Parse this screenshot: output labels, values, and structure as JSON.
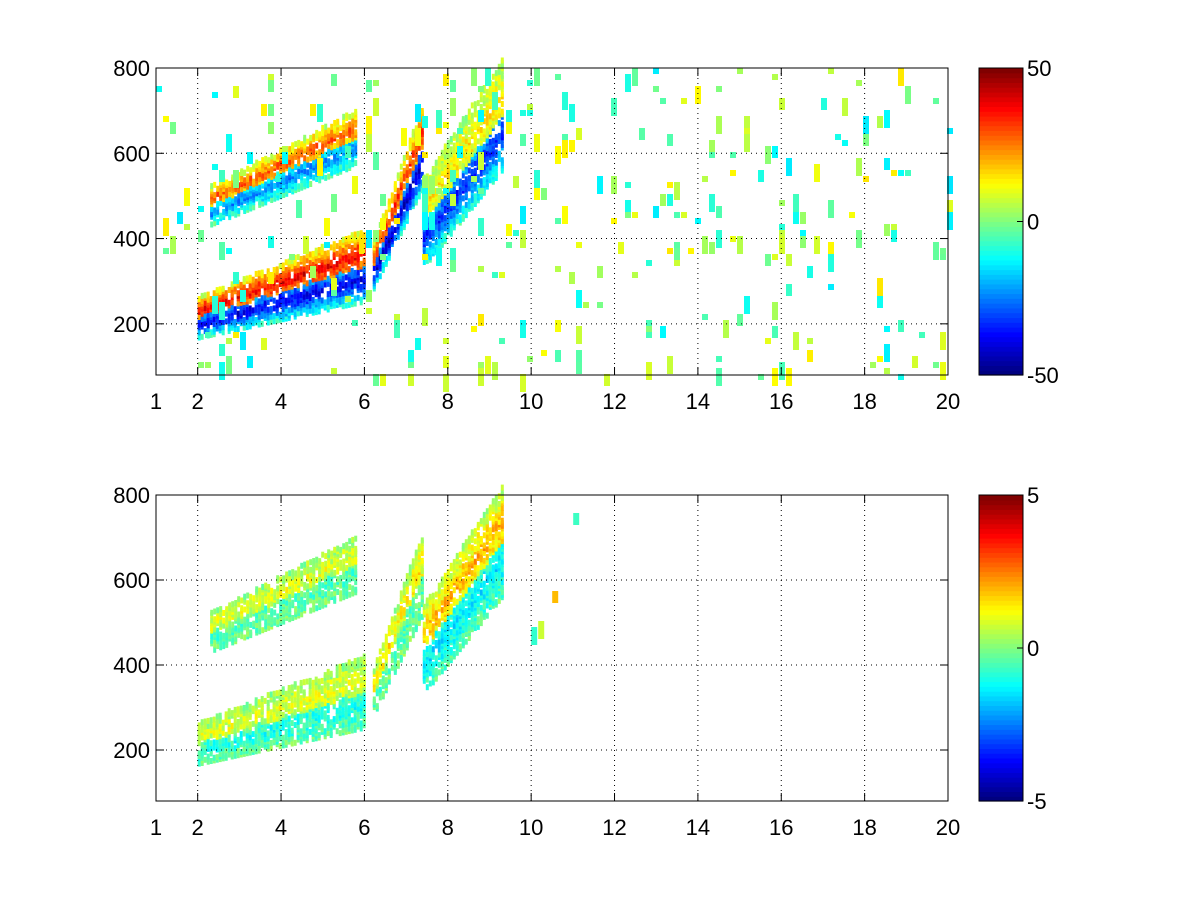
{
  "figure": {
    "background": "#ffffff",
    "grid_color": "#000000",
    "colormap": "jet"
  },
  "chart_data": [
    {
      "type": "heatmap",
      "title": "",
      "xlabel": "",
      "ylabel": "",
      "xlim": [
        1,
        20
      ],
      "ylim": [
        80,
        800
      ],
      "xticks": [
        1,
        2,
        4,
        6,
        8,
        10,
        12,
        14,
        16,
        18,
        20
      ],
      "yticks": [
        200,
        400,
        600,
        800
      ],
      "grid": true,
      "colorbar": {
        "limits": [
          -50,
          50
        ],
        "ticks": [
          -50,
          0,
          50
        ]
      },
      "description_of_values": "sparse colored cells; values range -50 to 50",
      "features": [
        {
          "name": "lower-ridge",
          "x": [
            2.0,
            6.0
          ],
          "y_start": [
            205,
            240
          ],
          "y_end": [
            290,
            400
          ],
          "value_top": 40,
          "value_bottom": -40
        },
        {
          "name": "upper-ridge",
          "x": [
            2.3,
            5.8
          ],
          "y_start": [
            470,
            500
          ],
          "y_end": [
            610,
            680
          ],
          "value_top": 30,
          "value_bottom": -25
        },
        {
          "name": "mid-ridge",
          "x": [
            6.2,
            7.4
          ],
          "y_start": [
            320,
            370
          ],
          "y_end": [
            560,
            700
          ],
          "value_top": 35,
          "value_bottom": -45
        },
        {
          "name": "right-ridge",
          "x": [
            7.4,
            9.3
          ],
          "y_start": [
            370,
            520
          ],
          "y_end": [
            600,
            800
          ],
          "value_top": 15,
          "value_bottom": -35
        }
      ],
      "background_noise": {
        "x": [
          1,
          20
        ],
        "y": [
          80,
          800
        ],
        "value_range": [
          -15,
          15
        ],
        "density": "sparse"
      }
    },
    {
      "type": "heatmap",
      "title": "",
      "xlabel": "",
      "ylabel": "",
      "xlim": [
        1,
        20
      ],
      "ylim": [
        80,
        800
      ],
      "xticks": [
        1,
        2,
        4,
        6,
        8,
        10,
        12,
        14,
        16,
        18,
        20
      ],
      "yticks": [
        200,
        400,
        600,
        800
      ],
      "grid": true,
      "colorbar": {
        "limits": [
          -5,
          5
        ],
        "ticks": [
          -5,
          0,
          5
        ]
      },
      "description_of_values": "sparse colored cells mostly near 0; values range -5 to 5",
      "features": [
        {
          "name": "lower-ridge",
          "x": [
            2.0,
            6.0
          ],
          "y_start": [
            205,
            240
          ],
          "y_end": [
            290,
            400
          ],
          "value_top": 1,
          "value_bottom": -1
        },
        {
          "name": "upper-ridge",
          "x": [
            2.3,
            5.8
          ],
          "y_start": [
            470,
            500
          ],
          "y_end": [
            610,
            680
          ],
          "value_top": 1,
          "value_bottom": -0.5
        },
        {
          "name": "mid-ridge",
          "x": [
            6.2,
            7.4
          ],
          "y_start": [
            320,
            370
          ],
          "y_end": [
            560,
            700
          ],
          "value_top": 1.5,
          "value_bottom": -0.5
        },
        {
          "name": "right-ridge",
          "x": [
            7.4,
            9.3
          ],
          "y_start": [
            370,
            520
          ],
          "y_end": [
            600,
            800
          ],
          "value_top": 2,
          "value_bottom": -1.5
        }
      ],
      "background_noise": {
        "x": [
          10,
          11.2
        ],
        "y": [
          80,
          800
        ],
        "value_range": [
          -1,
          2
        ],
        "density": "very-sparse"
      }
    }
  ]
}
